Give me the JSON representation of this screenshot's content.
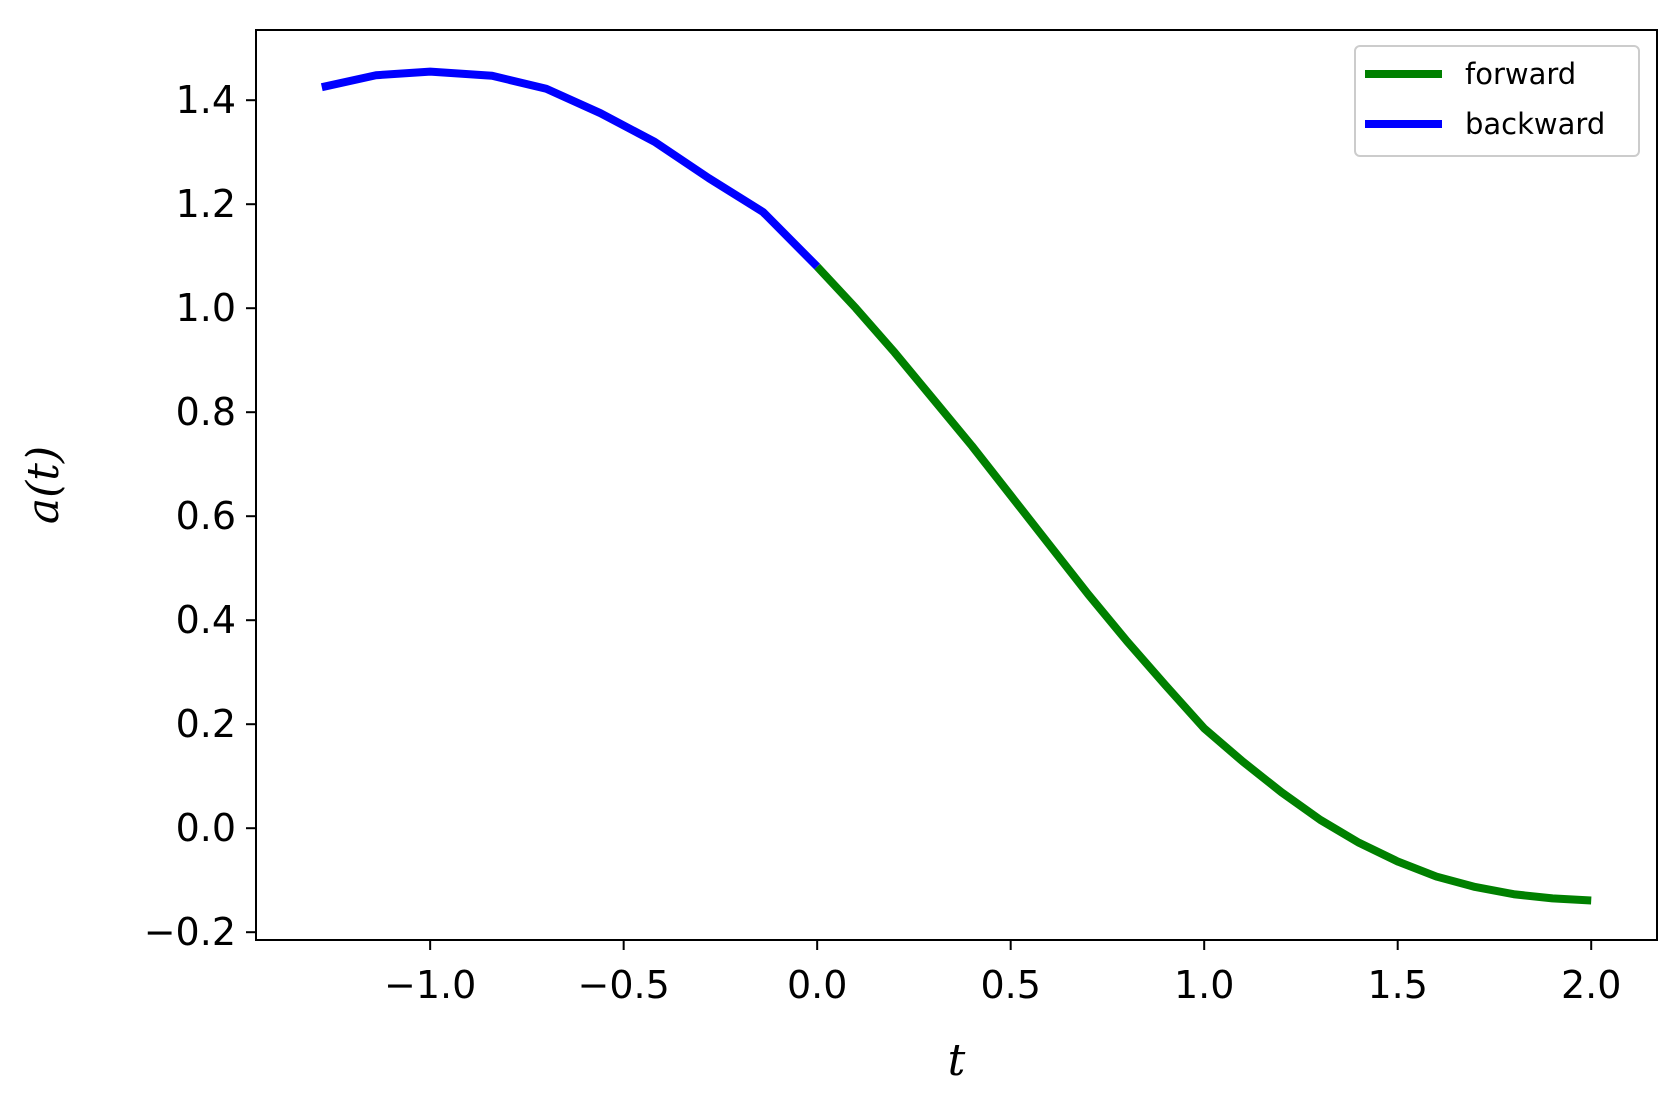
{
  "chart_data": {
    "type": "line",
    "title": "",
    "xlabel": "t",
    "ylabel": "a(t)",
    "xlim": [
      -1.45,
      2.17
    ],
    "ylim": [
      -0.215,
      1.535
    ],
    "xticks": [
      -1.0,
      -0.5,
      0.0,
      0.5,
      1.0,
      1.5,
      2.0
    ],
    "xtick_labels": [
      "−1.0",
      "−0.5",
      "0.0",
      "0.5",
      "1.0",
      "1.5",
      "2.0"
    ],
    "yticks": [
      -0.2,
      0.0,
      0.2,
      0.4,
      0.6,
      0.8,
      1.0,
      1.2,
      1.4
    ],
    "ytick_labels": [
      "−0.2",
      "0.0",
      "0.2",
      "0.4",
      "0.6",
      "0.8",
      "1.0",
      "1.2",
      "1.4"
    ],
    "grid": false,
    "legend": {
      "placement": "upper right",
      "entries": [
        "forward",
        "backward"
      ]
    },
    "series": [
      {
        "name": "forward",
        "color": "#008000",
        "x": [
          0.0,
          0.1,
          0.2,
          0.3,
          0.4,
          0.5,
          0.6,
          0.7,
          0.8,
          0.9,
          1.0,
          1.1,
          1.2,
          1.3,
          1.4,
          1.5,
          1.6,
          1.7,
          1.8,
          1.9,
          2.0
        ],
        "y": [
          1.08,
          1.0,
          0.915,
          0.825,
          0.735,
          0.64,
          0.545,
          0.45,
          0.36,
          0.275,
          0.192,
          0.128,
          0.069,
          0.016,
          -0.028,
          -0.064,
          -0.093,
          -0.113,
          -0.127,
          -0.135,
          -0.139
        ]
      },
      {
        "name": "backward",
        "color": "#0000ff",
        "x": [
          0.0,
          -0.14,
          -0.28,
          -0.42,
          -0.56,
          -0.7,
          -0.84,
          -1.0,
          -1.14,
          -1.28
        ],
        "y": [
          1.08,
          1.185,
          1.25,
          1.32,
          1.375,
          1.422,
          1.447,
          1.455,
          1.448,
          1.425
        ]
      }
    ]
  }
}
